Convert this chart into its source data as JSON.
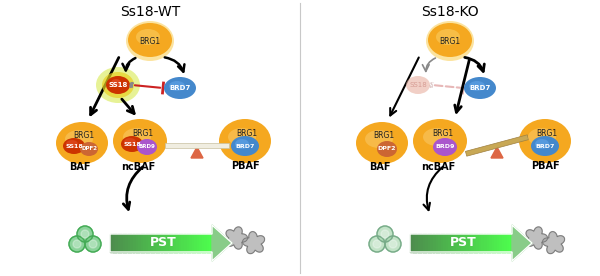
{
  "title_left": "Ss18-WT",
  "title_right": "Ss18-KO",
  "bg_color": "#ffffff",
  "divider_color": "#c8c8c8",
  "pst_text": "PST",
  "brg1_outer_color": "#f5a820",
  "brg1_inner_color": "#f9cc70",
  "ss18_active_outer": "#cc3300",
  "ss18_active_inner": "#e85520",
  "ss18_glow_color": "#e8f050",
  "ss18_ko_color": "#e8b0a0",
  "brd7_color": "#4488cc",
  "dpf2_color": "#cc6633",
  "brd9_color": "#aa55cc",
  "balance_bar_color": "#c8a855",
  "balance_bar_white": "#f0ede0",
  "balance_triangle_color": "#dd6644",
  "inhibit_color_active": "#cc2222",
  "inhibit_color_faded": "#dd9999",
  "pst_green_dark": "#55aa44",
  "pst_green_light": "#aaddaa",
  "stem_cell_color": "#77cc88",
  "stem_cell_edge": "#44aa55",
  "somatic_color": "#aaaaaa",
  "somatic_edge": "#777777"
}
